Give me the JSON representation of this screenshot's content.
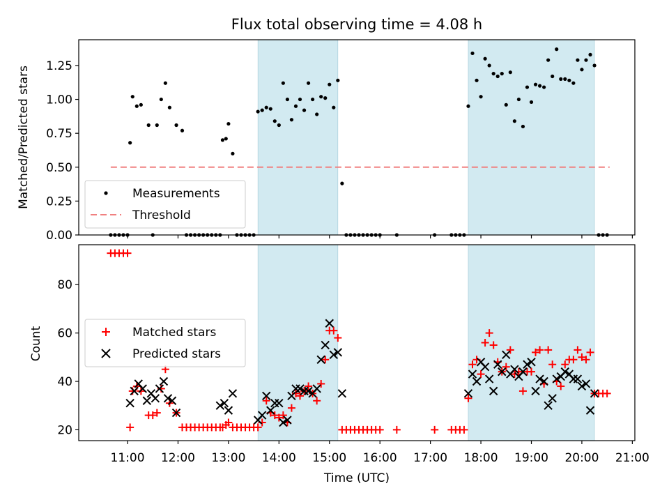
{
  "chart_data": [
    {
      "type": "scatter",
      "title": "Flux total observing time = 4.08 h",
      "xlabel": "",
      "ylabel": "Matched/Predicted stars",
      "ylim": [
        0,
        1.44
      ],
      "yticks": [
        "0.00",
        "0.25",
        "0.50",
        "0.75",
        "1.00",
        "1.25"
      ],
      "ytick_values": [
        0,
        0.25,
        0.5,
        0.75,
        1.0,
        1.25
      ],
      "legend_position": "lower-left",
      "legend": [
        {
          "label": "Measurements",
          "marker": "dot",
          "color": "#000000"
        },
        {
          "label": "Threshold",
          "marker": "dashed-line",
          "color": "#f08080"
        }
      ],
      "threshold": {
        "name": "Threshold",
        "y": 0.5,
        "x_start": "10:40",
        "x_end": "20:33",
        "color": "#f08080"
      },
      "shaded_intervals": [
        [
          "13:35",
          "15:10"
        ],
        [
          "17:45",
          "20:15"
        ]
      ],
      "shade_color": "#add8e6",
      "series": [
        {
          "name": "Measurements",
          "x": [
            "10:40",
            "10:45",
            "10:50",
            "10:55",
            "11:00",
            "11:03",
            "11:06",
            "11:11",
            "11:16",
            "11:25",
            "11:30",
            "11:35",
            "11:40",
            "11:45",
            "11:50",
            "11:58",
            "12:05",
            "12:10",
            "12:15",
            "12:20",
            "12:25",
            "12:30",
            "12:35",
            "12:40",
            "12:45",
            "12:50",
            "12:53",
            "12:57",
            "13:00",
            "13:05",
            "13:10",
            "13:15",
            "13:20",
            "13:25",
            "13:30",
            "13:35",
            "13:40",
            "13:45",
            "13:50",
            "13:55",
            "14:00",
            "14:05",
            "14:10",
            "14:15",
            "14:20",
            "14:25",
            "14:30",
            "14:35",
            "14:40",
            "14:45",
            "14:50",
            "14:55",
            "15:00",
            "15:05",
            "15:10",
            "15:15",
            "15:20",
            "15:25",
            "15:30",
            "15:35",
            "15:40",
            "15:45",
            "15:50",
            "15:55",
            "16:00",
            "16:20",
            "17:05",
            "17:25",
            "17:30",
            "17:35",
            "17:40",
            "17:45",
            "17:50",
            "17:55",
            "18:00",
            "18:05",
            "18:10",
            "18:15",
            "18:20",
            "18:25",
            "18:30",
            "18:35",
            "18:40",
            "18:45",
            "18:50",
            "18:55",
            "19:00",
            "19:05",
            "19:10",
            "19:15",
            "19:20",
            "19:25",
            "19:30",
            "19:35",
            "19:40",
            "19:45",
            "19:50",
            "19:55",
            "20:00",
            "20:05",
            "20:10",
            "20:15",
            "20:20",
            "20:25",
            "20:30"
          ],
          "y": [
            0,
            0,
            0,
            0,
            0,
            0.68,
            1.02,
            0.95,
            0.96,
            0.81,
            0,
            0.81,
            1.0,
            1.12,
            0.94,
            0.81,
            0.77,
            0,
            0,
            0,
            0,
            0,
            0,
            0,
            0,
            0,
            0.7,
            0.71,
            0.82,
            0.6,
            0,
            0,
            0,
            0,
            0,
            0.91,
            0.92,
            0.94,
            0.93,
            0.84,
            0.81,
            1.12,
            1.0,
            0.85,
            0.95,
            1.0,
            0.92,
            1.12,
            1.0,
            0.89,
            1.02,
            1.01,
            1.11,
            0.94,
            1.14,
            0.38,
            0,
            0,
            0,
            0,
            0,
            0,
            0,
            0,
            0,
            0,
            0,
            0,
            0,
            0,
            0,
            0.95,
            1.34,
            1.14,
            1.02,
            1.3,
            1.25,
            1.19,
            1.17,
            1.19,
            0.96,
            1.2,
            0.84,
            1.0,
            0.8,
            1.09,
            0.98,
            1.11,
            1.1,
            1.09,
            1.29,
            1.17,
            1.37,
            1.15,
            1.15,
            1.14,
            1.12,
            1.29,
            1.22,
            1.29,
            1.33,
            1.25,
            0,
            0,
            0
          ]
        }
      ]
    },
    {
      "type": "scatter",
      "title": "",
      "xlabel": "Time (UTC)",
      "ylabel": "Count",
      "ylim": [
        15.5,
        96.5
      ],
      "yticks": [
        "20",
        "40",
        "60",
        "80"
      ],
      "ytick_values": [
        20,
        40,
        60,
        80
      ],
      "xlim": [
        "10:02",
        "21:03"
      ],
      "xticks": [
        "11:00",
        "12:00",
        "13:00",
        "14:00",
        "15:00",
        "16:00",
        "17:00",
        "18:00",
        "19:00",
        "20:00",
        "21:00"
      ],
      "legend_position": "center-left",
      "legend": [
        {
          "label": "Matched stars",
          "marker": "+",
          "color": "#ff0000"
        },
        {
          "label": "Predicted stars",
          "marker": "x",
          "color": "#000000"
        }
      ],
      "shaded_intervals": [
        [
          "13:35",
          "15:10"
        ],
        [
          "17:45",
          "20:15"
        ]
      ],
      "shade_color": "#add8e6",
      "series": [
        {
          "name": "Matched stars",
          "marker": "+",
          "color": "#ff0000",
          "x": [
            "10:40",
            "10:45",
            "10:50",
            "10:55",
            "11:00",
            "11:03",
            "11:06",
            "11:11",
            "11:16",
            "11:25",
            "11:30",
            "11:35",
            "11:40",
            "11:45",
            "11:50",
            "11:58",
            "12:05",
            "12:10",
            "12:15",
            "12:20",
            "12:25",
            "12:30",
            "12:35",
            "12:40",
            "12:45",
            "12:50",
            "12:53",
            "12:57",
            "13:00",
            "13:05",
            "13:10",
            "13:15",
            "13:20",
            "13:25",
            "13:30",
            "13:35",
            "13:40",
            "13:45",
            "13:50",
            "13:55",
            "14:00",
            "14:05",
            "14:10",
            "14:15",
            "14:20",
            "14:25",
            "14:30",
            "14:35",
            "14:40",
            "14:45",
            "14:50",
            "14:55",
            "15:00",
            "15:05",
            "15:10",
            "15:15",
            "15:20",
            "15:25",
            "15:30",
            "15:35",
            "15:40",
            "15:45",
            "15:50",
            "15:55",
            "16:00",
            "16:20",
            "17:05",
            "17:25",
            "17:30",
            "17:35",
            "17:40",
            "17:45",
            "17:50",
            "17:55",
            "18:00",
            "18:05",
            "18:10",
            "18:15",
            "18:20",
            "18:25",
            "18:30",
            "18:35",
            "18:40",
            "18:45",
            "18:50",
            "18:55",
            "19:00",
            "19:05",
            "19:10",
            "19:15",
            "19:20",
            "19:25",
            "19:30",
            "19:35",
            "19:40",
            "19:45",
            "19:50",
            "19:55",
            "20:00",
            "20:05",
            "20:10",
            "20:15",
            "20:20",
            "20:25",
            "20:30"
          ],
          "y": [
            93,
            93,
            93,
            93,
            93,
            21,
            36,
            38,
            36,
            26,
            26,
            27,
            37,
            45,
            31,
            27,
            21,
            21,
            21,
            21,
            21,
            21,
            21,
            21,
            21,
            21,
            21,
            22,
            23,
            21,
            21,
            21,
            21,
            21,
            21,
            21,
            23,
            32,
            27,
            26,
            25,
            26,
            23,
            29,
            35,
            34,
            36,
            38,
            35,
            32,
            39,
            49,
            61,
            61,
            58,
            20,
            20,
            20,
            20,
            20,
            20,
            20,
            20,
            20,
            20,
            20,
            20,
            20,
            20,
            20,
            20,
            33,
            47,
            49,
            43,
            56,
            60,
            55,
            48,
            44,
            46,
            53,
            43,
            44,
            36,
            44,
            44,
            52,
            53,
            39,
            53,
            47,
            40,
            38,
            47,
            49,
            49,
            53,
            50,
            49,
            52,
            35,
            35,
            35,
            35
          ]
        },
        {
          "name": "Predicted stars",
          "marker": "x",
          "color": "#000000",
          "x": [
            "11:03",
            "11:08",
            "11:13",
            "11:18",
            "11:23",
            "11:28",
            "11:33",
            "11:38",
            "11:43",
            "11:48",
            "11:53",
            "11:58",
            "12:50",
            "12:55",
            "13:00",
            "13:05",
            "13:35",
            "13:40",
            "13:45",
            "13:50",
            "13:55",
            "14:00",
            "14:05",
            "14:10",
            "14:15",
            "14:20",
            "14:25",
            "14:30",
            "14:35",
            "14:40",
            "14:45",
            "14:50",
            "14:55",
            "15:00",
            "15:05",
            "15:10",
            "15:15",
            "17:45",
            "17:50",
            "17:55",
            "18:00",
            "18:05",
            "18:10",
            "18:15",
            "18:20",
            "18:25",
            "18:30",
            "18:35",
            "18:40",
            "18:45",
            "18:50",
            "18:55",
            "19:00",
            "19:05",
            "19:10",
            "19:15",
            "19:20",
            "19:25",
            "19:30",
            "19:35",
            "19:40",
            "19:45",
            "19:50",
            "19:55",
            "20:00",
            "20:05",
            "20:10",
            "20:15"
          ],
          "y": [
            31,
            36,
            39,
            37,
            32,
            35,
            33,
            37,
            40,
            33,
            32,
            27,
            30,
            31,
            28,
            35,
            24,
            26,
            34,
            28,
            31,
            31,
            23,
            24,
            34,
            37,
            37,
            36,
            36,
            35,
            37,
            49,
            55,
            64,
            51,
            52,
            35,
            35,
            43,
            40,
            48,
            46,
            41,
            36,
            47,
            44,
            51,
            43,
            45,
            42,
            44,
            47,
            48,
            36,
            41,
            40,
            30,
            33,
            41,
            42,
            44,
            43,
            41,
            41,
            38,
            39,
            28,
            35
          ]
        }
      ]
    }
  ]
}
